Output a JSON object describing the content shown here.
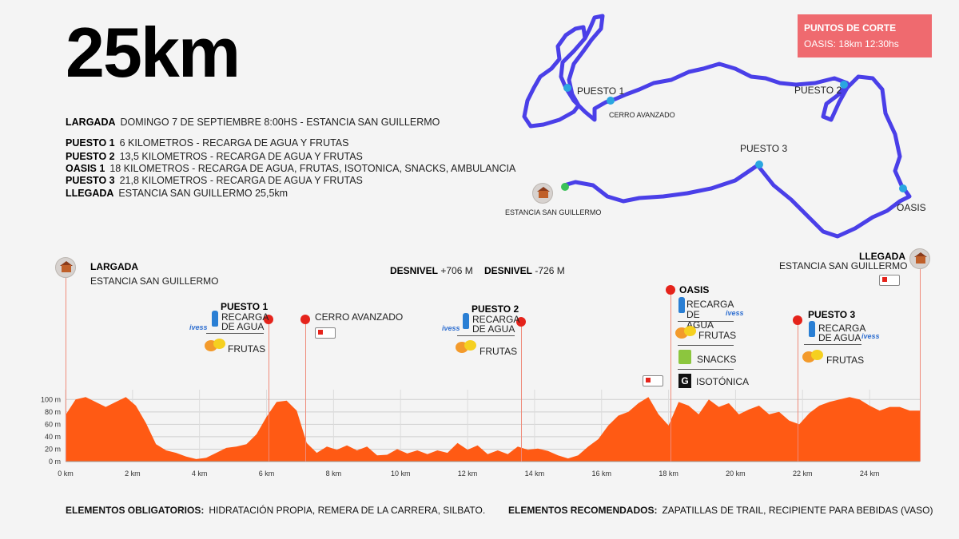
{
  "title": "25km",
  "info": [
    {
      "k": "LARGADA",
      "v": "DOMINGO 7 DE SEPTIEMBRE 8:00HS - ESTANCIA SAN GUILLERMO"
    },
    {
      "k": "PUESTO 1",
      "v": "6 KILOMETROS - RECARGA DE AGUA Y FRUTAS"
    },
    {
      "k": "PUESTO 2",
      "v": "13,5 KILOMETROS - RECARGA DE AGUA Y FRUTAS"
    },
    {
      "k": "OASIS 1",
      "v": "18 KILOMETROS - RECARGA DE AGUA, FRUTAS, ISOTONICA, SNACKS, AMBULANCIA"
    },
    {
      "k": "PUESTO 3",
      "v": "21,8 KILOMETROS - RECARGA DE AGUA Y FRUTAS"
    },
    {
      "k": "LLEGADA",
      "v": "ESTANCIA SAN GUILLERMO 25,5km"
    }
  ],
  "cutoff": {
    "heading": "PUNTOS DE CORTE",
    "text": "OASIS: 18km 12:30hs"
  },
  "map": {
    "puesto1": "PUESTO 1",
    "cerro": "CERRO AVANZADO",
    "puesto2": "PUESTO 2",
    "puesto3": "PUESTO 3",
    "oasis": "OASIS",
    "estancia": "ESTANCIA SAN GUILLERMO",
    "route_color": "#4a3fe8",
    "point_color": "#2aa6e0",
    "start_color": "#3cc25a"
  },
  "profile": {
    "largada": "LARGADA",
    "largada_place": "ESTANCIA SAN GUILLERMO",
    "llegada": "LLEGADA",
    "llegada_place": "ESTANCIA SAN GUILLERMO",
    "desnivel_label": "DESNIVEL",
    "desnivel_up": "+706 M",
    "desnivel_down": "-726 M",
    "puesto1": "PUESTO 1",
    "puesto2": "PUESTO 2",
    "puesto3": "PUESTO 3",
    "oasis": "OASIS",
    "cerro": "CERRO AVANZADO",
    "recarga1": "RECARGA",
    "recarga2": "DE AGUA",
    "recarga_oasis": "RECARGA DE AGUA",
    "frutas": "FRUTAS",
    "snacks": "SNACKS",
    "isotonica": "ISOTÓNICA",
    "ivess": "ivess",
    "gatorade": "G",
    "fill_color": "#ff5a14",
    "pin_color": "#e5231b"
  },
  "chart_data": {
    "type": "area",
    "x": [
      0,
      0.3,
      0.6,
      0.9,
      1.2,
      1.5,
      1.8,
      2.1,
      2.4,
      2.7,
      3.0,
      3.3,
      3.6,
      3.9,
      4.2,
      4.5,
      4.8,
      5.1,
      5.4,
      5.7,
      6.0,
      6.3,
      6.6,
      6.9,
      7.2,
      7.5,
      7.8,
      8.1,
      8.4,
      8.7,
      9.0,
      9.3,
      9.6,
      9.9,
      10.2,
      10.5,
      10.8,
      11.1,
      11.4,
      11.7,
      12.0,
      12.3,
      12.6,
      12.9,
      13.2,
      13.5,
      13.8,
      14.1,
      14.4,
      14.7,
      15.0,
      15.3,
      15.6,
      15.9,
      16.2,
      16.5,
      16.8,
      17.1,
      17.4,
      17.7,
      18.0,
      18.3,
      18.6,
      18.9,
      19.2,
      19.5,
      19.8,
      20.1,
      20.4,
      20.7,
      21.0,
      21.3,
      21.6,
      21.9,
      22.2,
      22.5,
      22.8,
      23.1,
      23.4,
      23.7,
      24.0,
      24.3,
      24.6,
      24.9,
      25.2,
      25.5
    ],
    "values": [
      75,
      100,
      104,
      96,
      88,
      96,
      104,
      90,
      62,
      28,
      18,
      14,
      8,
      4,
      6,
      14,
      22,
      24,
      28,
      44,
      72,
      96,
      98,
      82,
      30,
      14,
      24,
      19,
      26,
      18,
      24,
      10,
      11,
      20,
      13,
      18,
      12,
      18,
      14,
      30,
      19,
      26,
      12,
      18,
      12,
      24,
      19,
      21,
      17,
      10,
      5,
      10,
      24,
      36,
      58,
      74,
      80,
      94,
      104,
      76,
      58,
      96,
      90,
      76,
      100,
      88,
      94,
      76,
      84,
      90,
      76,
      80,
      66,
      60,
      78,
      90,
      96,
      100,
      104,
      100,
      90,
      82,
      88,
      88,
      82,
      82
    ],
    "xlabel": "",
    "ylabel": "",
    "xticks": [
      "0 km",
      "2 km",
      "4 km",
      "6 km",
      "8 km",
      "10 km",
      "12 km",
      "14 km",
      "16 km",
      "18 km",
      "20 km",
      "22 km",
      "24 km"
    ],
    "xtick_values": [
      0,
      2,
      4,
      6,
      8,
      10,
      12,
      14,
      16,
      18,
      20,
      22,
      24
    ],
    "yticks": [
      "0 m",
      "20 m",
      "40 m",
      "60 m",
      "80 m",
      "100 m"
    ],
    "ytick_values": [
      0,
      20,
      40,
      60,
      80,
      100
    ],
    "xlim": [
      0,
      25.5
    ],
    "ylim": [
      0,
      110
    ],
    "grid": true,
    "markers": [
      {
        "label": "LARGADA",
        "x": 0
      },
      {
        "label": "PUESTO 1",
        "x": 6
      },
      {
        "label": "CERRO AVANZADO",
        "x": 7.2
      },
      {
        "label": "PUESTO 2",
        "x": 13.5
      },
      {
        "label": "OASIS",
        "x": 18
      },
      {
        "label": "PUESTO 3",
        "x": 21.8
      },
      {
        "label": "LLEGADA",
        "x": 25.5
      }
    ]
  },
  "footer": {
    "obligatorios_k": "ELEMENTOS OBLIGATORIOS:",
    "obligatorios_v": "HIDRATACIÓN PROPIA, REMERA DE LA CARRERA, SILBATO.",
    "recomendados_k": "ELEMENTOS RECOMENDADOS:",
    "recomendados_v": "ZAPATILLAS DE TRAIL, RECIPIENTE PARA BEBIDAS (VASO)"
  }
}
